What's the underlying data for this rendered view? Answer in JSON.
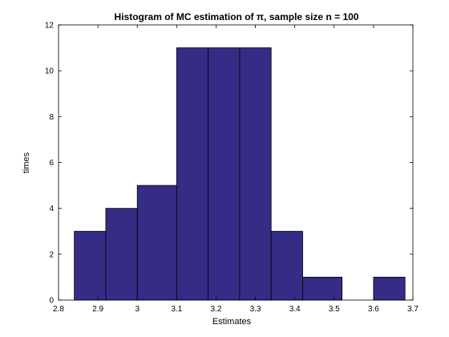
{
  "chart_data": {
    "type": "bar",
    "title": "Histogram of MC estimation of π, sample size n = 100",
    "xlabel": "Estimates",
    "ylabel": "times",
    "xlim": [
      2.8,
      3.7
    ],
    "ylim": [
      0,
      12
    ],
    "xticks": [
      "2.8",
      "2.9",
      "3",
      "3.1",
      "3.2",
      "3.3",
      "3.4",
      "3.5",
      "3.6",
      "3.7"
    ],
    "yticks": [
      "0",
      "2",
      "4",
      "6",
      "8",
      "10",
      "12"
    ],
    "grid": false,
    "bins": [
      {
        "x0": 2.84,
        "x1": 2.92,
        "count": 3
      },
      {
        "x0": 2.92,
        "x1": 3.0,
        "count": 4
      },
      {
        "x0": 3.0,
        "x1": 3.1,
        "count": 5
      },
      {
        "x0": 3.1,
        "x1": 3.18,
        "count": 11
      },
      {
        "x0": 3.18,
        "x1": 3.26,
        "count": 11
      },
      {
        "x0": 3.26,
        "x1": 3.34,
        "count": 11
      },
      {
        "x0": 3.34,
        "x1": 3.42,
        "count": 3
      },
      {
        "x0": 3.42,
        "x1": 3.52,
        "count": 1
      },
      {
        "x0": 3.52,
        "x1": 3.6,
        "count": 0
      },
      {
        "x0": 3.6,
        "x1": 3.68,
        "count": 1
      }
    ],
    "bar_color": "#352C86"
  }
}
